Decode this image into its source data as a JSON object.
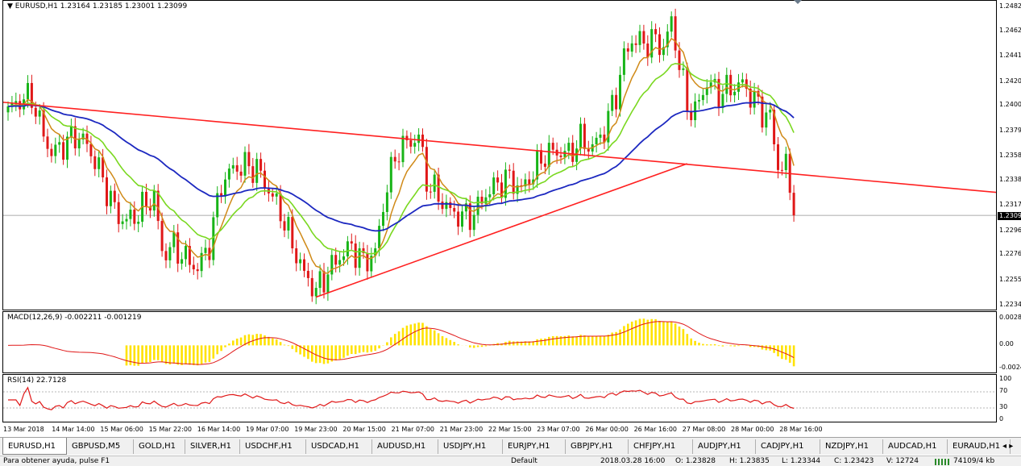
{
  "main_label": "EURUSD,H1  1.23164 1.23185 1.23001 1.23099",
  "main_prices": [
    "1.2482",
    "1.2462",
    "1.2441",
    "1.2420",
    "1.2400",
    "1.2379",
    "1.2358",
    "1.2338",
    "1.2317",
    "1.2296",
    "1.2276",
    "1.2255",
    "1.2234"
  ],
  "current_price": "1.2309",
  "macd_label": "MACD(12,26,9) -0.002211 -0.001219",
  "macd_levels": [
    "0.0028",
    "0.00",
    "-0.0024"
  ],
  "rsi_label": "RSI(14) 22.7128",
  "rsi_levels": [
    "100",
    "70",
    "30",
    "0"
  ],
  "x_labels": [
    "13 Mar 2018",
    "14 Mar 14:00",
    "15 Mar 06:00",
    "15 Mar 22:00",
    "16 Mar 14:00",
    "19 Mar 07:00",
    "19 Mar 23:00",
    "20 Mar 15:00",
    "21 Mar 07:00",
    "21 Mar 23:00",
    "22 Mar 15:00",
    "23 Mar 07:00",
    "26 Mar 00:00",
    "26 Mar 16:00",
    "27 Mar 08:00",
    "28 Mar 00:00",
    "28 Mar 16:00"
  ],
  "tabs": [
    "EURUSD,H1",
    "GBPUSD,M5",
    "GOLD,H1",
    "SILVER,H1",
    "USDCHF,H1",
    "USDCAD,H1",
    "AUDUSD,H1",
    "USDJPY,H1",
    "EURJPY,H1",
    "GBPJPY,H1",
    "CHFJPY,H1",
    "AUDJPY,H1",
    "CADJPY,H1",
    "NZDJPY,H1",
    "AUDCAD,H1",
    "EURAUD,H1"
  ],
  "tab_scroll": "◂ ▸",
  "status": {
    "help": "Para obtener ayuda, pulse F1",
    "profile": "Default",
    "datetime": "2018.03.28 16:00",
    "open": "O: 1.23828",
    "high": "H: 1.23835",
    "low": "L: 1.23344",
    "close": "C: 1.23423",
    "volume": "V: 12724",
    "traffic": "74109/4 kb"
  },
  "colors": {
    "bull": "#18b418",
    "bear": "#e01818",
    "ma_fast": "#d08a18",
    "ma_mid": "#7ad820",
    "ma_slow": "#1c28c0",
    "trend": "#ff2020",
    "macd_hist": "#ffe200",
    "macd_signal": "#e01818",
    "rsi": "#e01818"
  },
  "chart_data": {
    "type": "candlestick",
    "symbol": "EURUSD",
    "timeframe": "H1",
    "ylim": [
      1.2234,
      1.2482
    ],
    "anchors": [
      [
        0,
        1.2395
      ],
      [
        2,
        1.2403
      ],
      [
        6,
        1.2408
      ],
      [
        8,
        1.2385
      ],
      [
        11,
        1.236
      ],
      [
        14,
        1.2368
      ],
      [
        17,
        1.2375
      ],
      [
        19,
        1.2372
      ],
      [
        22,
        1.2355
      ],
      [
        25,
        1.233
      ],
      [
        28,
        1.2307
      ],
      [
        31,
        1.2305
      ],
      [
        34,
        1.2315
      ],
      [
        37,
        1.2325
      ],
      [
        39,
        1.2278
      ],
      [
        42,
        1.2283
      ],
      [
        45,
        1.2273
      ],
      [
        48,
        1.2265
      ],
      [
        51,
        1.2285
      ],
      [
        54,
        1.2335
      ],
      [
        57,
        1.2348
      ],
      [
        60,
        1.235
      ],
      [
        63,
        1.2348
      ],
      [
        66,
        1.233
      ],
      [
        69,
        1.2312
      ],
      [
        72,
        1.2285
      ],
      [
        75,
        1.226
      ],
      [
        78,
        1.2246
      ],
      [
        81,
        1.2262
      ],
      [
        84,
        1.2275
      ],
      [
        87,
        1.2283
      ],
      [
        90,
        1.227
      ],
      [
        93,
        1.2278
      ],
      [
        96,
        1.2335
      ],
      [
        99,
        1.2365
      ],
      [
        102,
        1.237
      ],
      [
        104,
        1.2375
      ],
      [
        106,
        1.2338
      ],
      [
        109,
        1.2325
      ],
      [
        112,
        1.2312
      ],
      [
        115,
        1.2308
      ],
      [
        118,
        1.231
      ],
      [
        121,
        1.2327
      ],
      [
        124,
        1.2335
      ],
      [
        127,
        1.234
      ],
      [
        130,
        1.233
      ],
      [
        133,
        1.2345
      ],
      [
        136,
        1.236
      ],
      [
        139,
        1.2362
      ],
      [
        142,
        1.236
      ],
      [
        145,
        1.2372
      ],
      [
        148,
        1.2365
      ],
      [
        151,
        1.238
      ],
      [
        154,
        1.241
      ],
      [
        156,
        1.244
      ],
      [
        158,
        1.2455
      ],
      [
        161,
        1.2452
      ],
      [
        164,
        1.2455
      ],
      [
        166,
        1.2448
      ],
      [
        168,
        1.247
      ],
      [
        170,
        1.2435
      ],
      [
        172,
        1.24
      ],
      [
        174,
        1.2395
      ],
      [
        177,
        1.242
      ],
      [
        180,
        1.241
      ],
      [
        183,
        1.2415
      ],
      [
        186,
        1.2418
      ],
      [
        189,
        1.2405
      ],
      [
        191,
        1.2395
      ],
      [
        193,
        1.239
      ],
      [
        195,
        1.235
      ],
      [
        197,
        1.235
      ],
      [
        199,
        1.2309
      ]
    ]
  }
}
